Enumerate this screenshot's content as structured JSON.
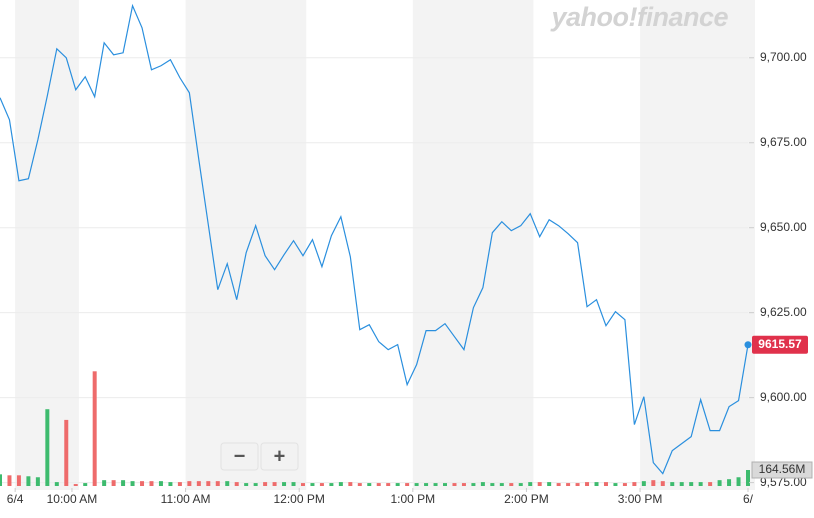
{
  "logo": "yahoo!finance",
  "zoom": {
    "out": "−",
    "in": "+"
  },
  "chart_data": {
    "type": "line",
    "color": "#2a8fde",
    "grid": true,
    "band_color": "#f3f3f3",
    "x": [
      9.3667,
      9.45,
      9.5333,
      9.6167,
      9.7,
      9.7833,
      9.8667,
      9.95,
      10.0333,
      10.1167,
      10.2,
      10.2833,
      10.3667,
      10.45,
      10.5333,
      10.6167,
      10.7,
      10.7833,
      10.8667,
      10.95,
      11.0333,
      11.1167,
      11.2,
      11.2833,
      11.3667,
      11.45,
      11.5333,
      11.6167,
      11.7,
      11.7833,
      11.8667,
      11.95,
      12.0333,
      12.1167,
      12.2,
      12.2833,
      12.3667,
      12.45,
      12.5333,
      12.6167,
      12.7,
      12.7833,
      12.8667,
      12.95,
      13.0333,
      13.1167,
      13.2,
      13.2833,
      13.3667,
      13.45,
      13.5333,
      13.6167,
      13.7,
      13.7833,
      13.8667,
      13.95,
      14.0333,
      14.1167,
      14.2,
      14.2833,
      14.3667,
      14.45,
      14.5333,
      14.6167,
      14.7,
      14.7833,
      14.8667,
      14.95,
      15.0333,
      15.1167,
      15.2,
      15.2833,
      15.3667,
      15.45,
      15.5333,
      15.6167,
      15.7,
      15.7833,
      15.8667,
      15.95
    ],
    "values": [
      9688.24,
      9681.76,
      9663.82,
      9664.41,
      9675.88,
      9688.82,
      9702.65,
      9700,
      9690.59,
      9694.41,
      9688.53,
      9704.41,
      9700.88,
      9701.47,
      9715.29,
      9708.82,
      9696.47,
      9697.65,
      9699.41,
      9694.12,
      9689.71,
      9670,
      9650.88,
      9631.76,
      9639.41,
      9628.82,
      9642.65,
      9650.59,
      9641.76,
      9637.65,
      9642.06,
      9646.18,
      9641.76,
      9646.47,
      9638.53,
      9647.65,
      9653.24,
      9641.47,
      9620,
      9621.47,
      9616.47,
      9614.12,
      9615.59,
      9603.82,
      9609.71,
      9619.71,
      9619.71,
      9621.76,
      9617.94,
      9614.12,
      9626.47,
      9632.35,
      9648.53,
      9651.76,
      9649.12,
      9650.59,
      9654.12,
      9647.35,
      9652.35,
      9650.59,
      9648.24,
      9645.59,
      9626.76,
      9628.82,
      9621.18,
      9625.29,
      9622.94,
      9592.06,
      9600.29,
      9580.88,
      9577.65,
      9584.41,
      9586.47,
      9588.53,
      9599.41,
      9590.29,
      9590.29,
      9597.35,
      9599.12,
      9615.57
    ],
    "xlim": [
      9.3667,
      15.95
    ],
    "ylim": [
      9574,
      9717
    ],
    "xticks": [
      {
        "value": 9.5,
        "label": "6/4"
      },
      {
        "value": 10,
        "label": "10:00 AM"
      },
      {
        "value": 11,
        "label": "11:00 AM"
      },
      {
        "value": 12,
        "label": "12:00 PM"
      },
      {
        "value": 13,
        "label": "1:00 PM"
      },
      {
        "value": 14,
        "label": "2:00 PM"
      },
      {
        "value": 15,
        "label": "3:00 PM"
      },
      {
        "value": 15.95,
        "label": "6/"
      }
    ],
    "yticks": [
      {
        "value": 9575,
        "label": "9,575.00"
      },
      {
        "value": 9600,
        "label": "9,600.00"
      },
      {
        "value": 9625,
        "label": "9,625.00"
      },
      {
        "value": 9650,
        "label": "9,650.00"
      },
      {
        "value": 9675,
        "label": "9,675.00"
      },
      {
        "value": 9700,
        "label": "9,700.00"
      }
    ],
    "volume": {
      "up_color": "#3dbb6e",
      "down_color": "#ee6b6b",
      "y2lim": [
        0,
        5000
      ],
      "values": [
        120,
        110,
        110,
        100,
        90,
        790,
        40,
        680,
        20,
        30,
        1180,
        60,
        60,
        60,
        50,
        50,
        50,
        50,
        40,
        40,
        50,
        50,
        50,
        50,
        50,
        40,
        30,
        30,
        40,
        40,
        40,
        40,
        30,
        30,
        30,
        30,
        40,
        40,
        30,
        30,
        30,
        30,
        30,
        30,
        30,
        30,
        30,
        30,
        30,
        30,
        30,
        40,
        30,
        30,
        30,
        30,
        40,
        40,
        40,
        30,
        30,
        30,
        40,
        40,
        40,
        30,
        30,
        40,
        50,
        60,
        50,
        40,
        40,
        40,
        40,
        40,
        60,
        70,
        90,
        164.56
      ],
      "value_labels": [
        null,
        null,
        null,
        null,
        null,
        null,
        null,
        null,
        null,
        null,
        null,
        null,
        null,
        null,
        null,
        null,
        null,
        null,
        null,
        null,
        null,
        null,
        null,
        null,
        null,
        null,
        null,
        null,
        null,
        null,
        null,
        null,
        null,
        null,
        null,
        null,
        null,
        null,
        null,
        null,
        null,
        null,
        null,
        null,
        null,
        null,
        null,
        null,
        null,
        null,
        null,
        null,
        null,
        null,
        null,
        null,
        null,
        null,
        null,
        null,
        null,
        null,
        null,
        null,
        null,
        null,
        null,
        null,
        null,
        null,
        null,
        null,
        null,
        null,
        null,
        null,
        null,
        null,
        null,
        "164.56M"
      ]
    }
  }
}
